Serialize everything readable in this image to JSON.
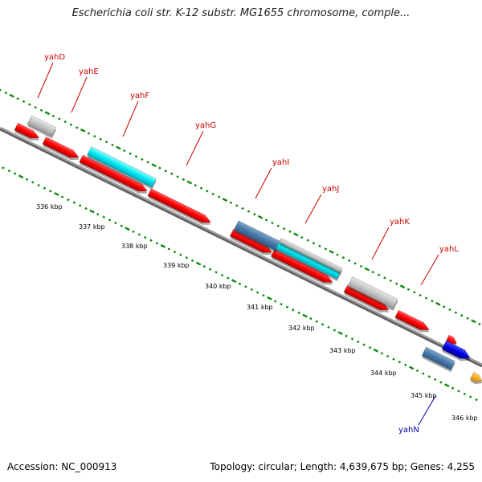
{
  "title": "Escherichia coli str. K-12 substr. MG1655 chromosome, comple...",
  "footer": {
    "accession": "Accession: NC_000913",
    "summary": "Topology: circular; Length: 4,639,675 bp; Genes: 4,255"
  },
  "scale_labels": [
    "336 kbp",
    "337 kbp",
    "338 kbp",
    "339 kbp",
    "340 kbp",
    "341 kbp",
    "342 kbp",
    "343 kbp",
    "344 kbp",
    "345 kbp",
    "346 kbp"
  ],
  "genes": [
    {
      "name": "yahD",
      "color": "#cc0000"
    },
    {
      "name": "yahE",
      "color": "#cc0000"
    },
    {
      "name": "yahF",
      "color": "#cc0000"
    },
    {
      "name": "yahG",
      "color": "#cc0000"
    },
    {
      "name": "yahI",
      "color": "#cc0000"
    },
    {
      "name": "yahJ",
      "color": "#cc0000"
    },
    {
      "name": "yahK",
      "color": "#cc0000"
    },
    {
      "name": "yahL",
      "color": "#cc0000"
    },
    {
      "name": "yahN",
      "color": "#0000aa"
    }
  ],
  "colors": {
    "cds": "#ff0000",
    "gene": "#c8c8c8",
    "cyan": "#00e5ee",
    "steel": "#4f7fad",
    "blue": "#0000e0",
    "orange": "#f59b00",
    "backbone": "#808080",
    "ticks": "#008000"
  }
}
